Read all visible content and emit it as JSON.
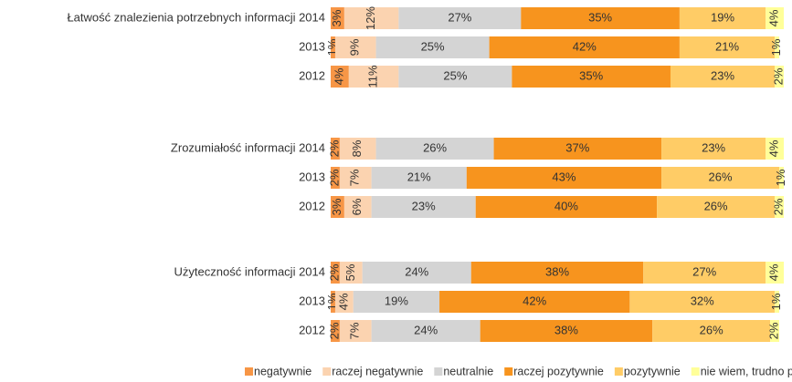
{
  "chart_data": {
    "type": "stacked_bar_horizontal",
    "categories": [
      "Łatwość znalezienia potrzebnych informacji 2014",
      "2013",
      "2012",
      "Zrozumiałość informacji 2014",
      "2013",
      "2012",
      "Użyteczność informacji 2014",
      "2013",
      "2012"
    ],
    "xlim": [
      0,
      100
    ],
    "legend": "bottom",
    "series": [
      {
        "name": "negatywnie",
        "color": "#f79646",
        "values": [
          3,
          1,
          4,
          2,
          2,
          3,
          2,
          1,
          2
        ],
        "value_labels": [
          "3%",
          "1%",
          "4%",
          "2%",
          "2%",
          "3%",
          "2%",
          "1%",
          "2%"
        ]
      },
      {
        "name": "raczej negatywnie",
        "color": "#fbd3b0",
        "values": [
          12,
          9,
          11,
          8,
          7,
          6,
          5,
          4,
          7
        ],
        "value_labels": [
          "12%",
          "9%",
          "11%",
          "8%",
          "7%",
          "6%",
          "5%",
          "4%",
          "7%"
        ]
      },
      {
        "name": "neutralnie",
        "color": "#d4d4d4",
        "values": [
          27,
          25,
          25,
          26,
          21,
          23,
          24,
          19,
          24
        ],
        "value_labels": [
          "27%",
          "25%",
          "25%",
          "26%",
          "21%",
          "23%",
          "24%",
          "19%",
          "24%"
        ]
      },
      {
        "name": "raczej pozytywnie",
        "color": "#f7941e",
        "values": [
          35,
          42,
          35,
          37,
          43,
          40,
          38,
          42,
          38
        ],
        "value_labels": [
          "35%",
          "42%",
          "35%",
          "37%",
          "43%",
          "40%",
          "38%",
          "42%",
          "38%"
        ]
      },
      {
        "name": "pozytywnie",
        "color": "#ffcc66",
        "values": [
          19,
          21,
          23,
          23,
          26,
          26,
          27,
          32,
          26
        ],
        "value_labels": [
          "19%",
          "21%",
          "23%",
          "23%",
          "26%",
          "26%",
          "27%",
          "32%",
          "26%"
        ]
      },
      {
        "name": "nie wiem, trudno powiedzieć",
        "color": "#ffff99",
        "values": [
          4,
          1,
          2,
          4,
          1,
          2,
          4,
          1,
          2
        ],
        "value_labels": [
          "4%",
          "1%",
          "2%",
          "4%",
          "1%",
          "2%",
          "4%",
          "1%",
          "2%"
        ]
      }
    ]
  }
}
